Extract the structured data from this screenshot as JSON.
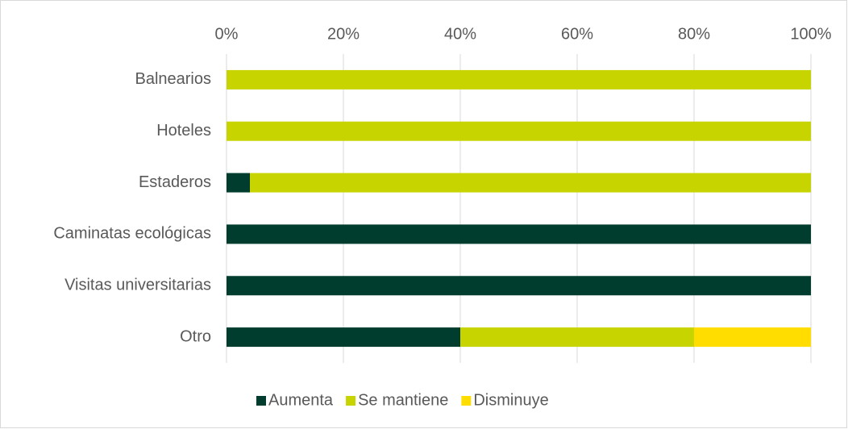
{
  "chart_data": {
    "type": "stacked-bar-horizontal",
    "categories": [
      "Balnearios",
      "Hoteles",
      "Estaderos",
      "Caminatas ecológicas",
      "Visitas universitarias",
      "Otro"
    ],
    "series": [
      {
        "name": "Aumenta",
        "color": "#003d2e",
        "values": [
          0,
          0,
          4,
          100,
          100,
          40
        ]
      },
      {
        "name": "Se mantiene",
        "color": "#c8d400",
        "values": [
          100,
          100,
          96,
          0,
          0,
          40
        ]
      },
      {
        "name": "Disminuye",
        "color": "#ffdd00",
        "values": [
          0,
          0,
          0,
          0,
          0,
          20
        ]
      }
    ],
    "xlim": [
      0,
      100
    ],
    "xticks": [
      {
        "value": 0,
        "label": "0%"
      },
      {
        "value": 20,
        "label": "20%"
      },
      {
        "value": 40,
        "label": "40%"
      },
      {
        "value": 60,
        "label": "60%"
      },
      {
        "value": 80,
        "label": "80%"
      },
      {
        "value": 100,
        "label": "100%"
      }
    ],
    "grid": true,
    "legend": "bottom"
  }
}
